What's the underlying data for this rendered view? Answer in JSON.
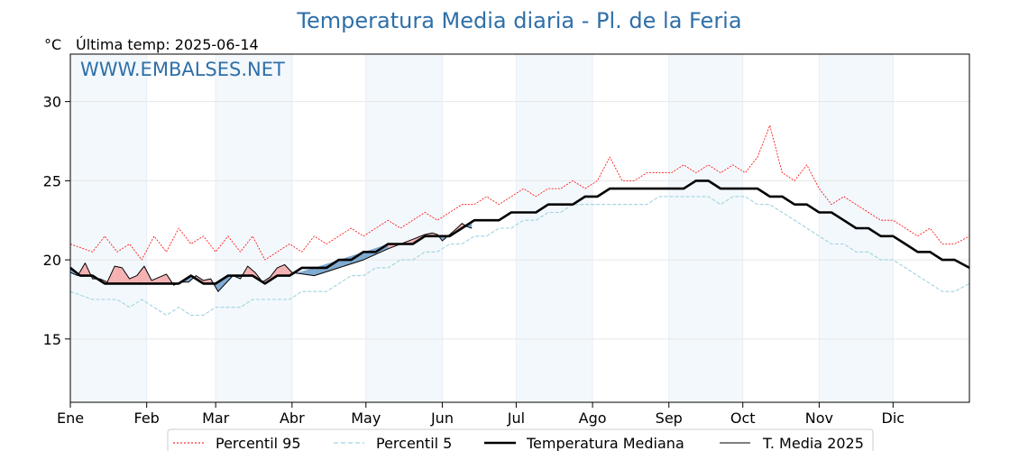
{
  "chart_data": {
    "type": "line",
    "title": "Temperatura Media diaria - Pl. de la Feria",
    "unit_label": "°C",
    "last_temp_label": "Última temp: 2025-06-14",
    "watermark": "WWW.EMBALSES.NET",
    "ylim": [
      11,
      33
    ],
    "yticks": [
      15,
      20,
      25,
      30
    ],
    "xlim": [
      1,
      366
    ],
    "month_ticks": [
      {
        "label": "Ene",
        "day": 1
      },
      {
        "label": "Feb",
        "day": 32
      },
      {
        "label": "Mar",
        "day": 60
      },
      {
        "label": "Abr",
        "day": 91
      },
      {
        "label": "May",
        "day": 121
      },
      {
        "label": "Jun",
        "day": 152
      },
      {
        "label": "Jul",
        "day": 182
      },
      {
        "label": "Ago",
        "day": 213
      },
      {
        "label": "Sep",
        "day": 244
      },
      {
        "label": "Oct",
        "day": 274
      },
      {
        "label": "Nov",
        "day": 305
      },
      {
        "label": "Dic",
        "day": 335
      }
    ],
    "grid": true,
    "legend_position": "bottom-center",
    "series": [
      {
        "name": "Percentil 95",
        "style": "dotted",
        "color": "#ff0000",
        "points": [
          [
            1,
            21.0
          ],
          [
            10,
            20.5
          ],
          [
            15,
            21.5
          ],
          [
            20,
            20.5
          ],
          [
            25,
            21.0
          ],
          [
            30,
            20.0
          ],
          [
            35,
            21.5
          ],
          [
            40,
            20.5
          ],
          [
            45,
            22.0
          ],
          [
            50,
            21.0
          ],
          [
            55,
            21.5
          ],
          [
            60,
            20.5
          ],
          [
            65,
            21.5
          ],
          [
            70,
            20.5
          ],
          [
            75,
            21.5
          ],
          [
            80,
            20.0
          ],
          [
            85,
            20.5
          ],
          [
            90,
            21.0
          ],
          [
            95,
            20.5
          ],
          [
            100,
            21.5
          ],
          [
            105,
            21.0
          ],
          [
            110,
            21.5
          ],
          [
            115,
            22.0
          ],
          [
            120,
            21.5
          ],
          [
            125,
            22.0
          ],
          [
            130,
            22.5
          ],
          [
            135,
            22.0
          ],
          [
            140,
            22.5
          ],
          [
            145,
            23.0
          ],
          [
            150,
            22.5
          ],
          [
            155,
            23.0
          ],
          [
            160,
            23.5
          ],
          [
            165,
            23.5
          ],
          [
            170,
            24.0
          ],
          [
            175,
            23.5
          ],
          [
            180,
            24.0
          ],
          [
            185,
            24.5
          ],
          [
            190,
            24.0
          ],
          [
            195,
            24.5
          ],
          [
            200,
            24.5
          ],
          [
            205,
            25.0
          ],
          [
            210,
            24.5
          ],
          [
            215,
            25.0
          ],
          [
            220,
            26.5
          ],
          [
            225,
            25.0
          ],
          [
            230,
            25.0
          ],
          [
            235,
            25.5
          ],
          [
            240,
            25.5
          ],
          [
            245,
            25.5
          ],
          [
            250,
            26.0
          ],
          [
            255,
            25.5
          ],
          [
            260,
            26.0
          ],
          [
            265,
            25.5
          ],
          [
            270,
            26.0
          ],
          [
            275,
            25.5
          ],
          [
            280,
            26.5
          ],
          [
            285,
            28.5
          ],
          [
            290,
            25.5
          ],
          [
            295,
            25.0
          ],
          [
            300,
            26.0
          ],
          [
            305,
            24.5
          ],
          [
            310,
            23.5
          ],
          [
            315,
            24.0
          ],
          [
            320,
            23.5
          ],
          [
            325,
            23.0
          ],
          [
            330,
            22.5
          ],
          [
            335,
            22.5
          ],
          [
            340,
            22.0
          ],
          [
            345,
            21.5
          ],
          [
            350,
            22.0
          ],
          [
            355,
            21.0
          ],
          [
            360,
            21.0
          ],
          [
            366,
            21.5
          ]
        ]
      },
      {
        "name": "Percentil 5",
        "style": "dashed",
        "color": "#9fd3e0",
        "points": [
          [
            1,
            18.0
          ],
          [
            10,
            17.5
          ],
          [
            15,
            17.5
          ],
          [
            20,
            17.5
          ],
          [
            25,
            17.0
          ],
          [
            30,
            17.5
          ],
          [
            35,
            17.0
          ],
          [
            40,
            16.5
          ],
          [
            45,
            17.0
          ],
          [
            50,
            16.5
          ],
          [
            55,
            16.5
          ],
          [
            60,
            17.0
          ],
          [
            65,
            17.0
          ],
          [
            70,
            17.0
          ],
          [
            75,
            17.5
          ],
          [
            80,
            17.5
          ],
          [
            85,
            17.5
          ],
          [
            90,
            17.5
          ],
          [
            95,
            18.0
          ],
          [
            100,
            18.0
          ],
          [
            105,
            18.0
          ],
          [
            110,
            18.5
          ],
          [
            115,
            19.0
          ],
          [
            120,
            19.0
          ],
          [
            125,
            19.5
          ],
          [
            130,
            19.5
          ],
          [
            135,
            20.0
          ],
          [
            140,
            20.0
          ],
          [
            145,
            20.5
          ],
          [
            150,
            20.5
          ],
          [
            155,
            21.0
          ],
          [
            160,
            21.0
          ],
          [
            165,
            21.5
          ],
          [
            170,
            21.5
          ],
          [
            175,
            22.0
          ],
          [
            180,
            22.0
          ],
          [
            185,
            22.5
          ],
          [
            190,
            22.5
          ],
          [
            195,
            23.0
          ],
          [
            200,
            23.0
          ],
          [
            205,
            23.5
          ],
          [
            210,
            23.5
          ],
          [
            215,
            23.5
          ],
          [
            220,
            23.5
          ],
          [
            225,
            23.5
          ],
          [
            230,
            23.5
          ],
          [
            235,
            23.5
          ],
          [
            240,
            24.0
          ],
          [
            245,
            24.0
          ],
          [
            250,
            24.0
          ],
          [
            255,
            24.0
          ],
          [
            260,
            24.0
          ],
          [
            265,
            23.5
          ],
          [
            270,
            24.0
          ],
          [
            275,
            24.0
          ],
          [
            280,
            23.5
          ],
          [
            285,
            23.5
          ],
          [
            290,
            23.0
          ],
          [
            295,
            22.5
          ],
          [
            300,
            22.0
          ],
          [
            305,
            21.5
          ],
          [
            310,
            21.0
          ],
          [
            315,
            21.0
          ],
          [
            320,
            20.5
          ],
          [
            325,
            20.5
          ],
          [
            330,
            20.0
          ],
          [
            335,
            20.0
          ],
          [
            340,
            19.5
          ],
          [
            345,
            19.0
          ],
          [
            350,
            18.5
          ],
          [
            355,
            18.0
          ],
          [
            360,
            18.0
          ],
          [
            366,
            18.5
          ]
        ]
      },
      {
        "name": "Temperatura Mediana",
        "style": "thick",
        "color": "#000000",
        "points": [
          [
            1,
            19.5
          ],
          [
            5,
            19.0
          ],
          [
            10,
            19.0
          ],
          [
            15,
            18.5
          ],
          [
            20,
            18.5
          ],
          [
            25,
            18.5
          ],
          [
            30,
            18.5
          ],
          [
            35,
            18.5
          ],
          [
            40,
            18.5
          ],
          [
            45,
            18.5
          ],
          [
            50,
            19.0
          ],
          [
            55,
            18.5
          ],
          [
            60,
            18.5
          ],
          [
            65,
            19.0
          ],
          [
            70,
            19.0
          ],
          [
            75,
            19.0
          ],
          [
            80,
            18.5
          ],
          [
            85,
            19.0
          ],
          [
            90,
            19.0
          ],
          [
            95,
            19.5
          ],
          [
            100,
            19.5
          ],
          [
            105,
            19.5
          ],
          [
            110,
            20.0
          ],
          [
            115,
            20.0
          ],
          [
            120,
            20.5
          ],
          [
            125,
            20.5
          ],
          [
            130,
            21.0
          ],
          [
            135,
            21.0
          ],
          [
            140,
            21.0
          ],
          [
            145,
            21.5
          ],
          [
            150,
            21.5
          ],
          [
            155,
            21.5
          ],
          [
            160,
            22.0
          ],
          [
            165,
            22.5
          ],
          [
            170,
            22.5
          ],
          [
            175,
            22.5
          ],
          [
            180,
            23.0
          ],
          [
            185,
            23.0
          ],
          [
            190,
            23.0
          ],
          [
            195,
            23.5
          ],
          [
            200,
            23.5
          ],
          [
            205,
            23.5
          ],
          [
            210,
            24.0
          ],
          [
            215,
            24.0
          ],
          [
            220,
            24.5
          ],
          [
            225,
            24.5
          ],
          [
            230,
            24.5
          ],
          [
            235,
            24.5
          ],
          [
            240,
            24.5
          ],
          [
            245,
            24.5
          ],
          [
            250,
            24.5
          ],
          [
            255,
            25.0
          ],
          [
            260,
            25.0
          ],
          [
            265,
            24.5
          ],
          [
            270,
            24.5
          ],
          [
            275,
            24.5
          ],
          [
            280,
            24.5
          ],
          [
            285,
            24.0
          ],
          [
            290,
            24.0
          ],
          [
            295,
            23.5
          ],
          [
            300,
            23.5
          ],
          [
            305,
            23.0
          ],
          [
            310,
            23.0
          ],
          [
            315,
            22.5
          ],
          [
            320,
            22.0
          ],
          [
            325,
            22.0
          ],
          [
            330,
            21.5
          ],
          [
            335,
            21.5
          ],
          [
            340,
            21.0
          ],
          [
            345,
            20.5
          ],
          [
            350,
            20.5
          ],
          [
            355,
            20.0
          ],
          [
            360,
            20.0
          ],
          [
            366,
            19.5
          ]
        ]
      },
      {
        "name": "T. Media 2025",
        "style": "thin",
        "color": "#000000",
        "points": [
          [
            1,
            19.2
          ],
          [
            4,
            19.0
          ],
          [
            7,
            19.8
          ],
          [
            10,
            18.8
          ],
          [
            13,
            18.8
          ],
          [
            16,
            18.6
          ],
          [
            19,
            19.6
          ],
          [
            22,
            19.5
          ],
          [
            25,
            18.8
          ],
          [
            28,
            19.0
          ],
          [
            31,
            19.6
          ],
          [
            34,
            18.7
          ],
          [
            37,
            18.9
          ],
          [
            40,
            19.1
          ],
          [
            43,
            18.4
          ],
          [
            46,
            18.6
          ],
          [
            49,
            18.6
          ],
          [
            52,
            19.0
          ],
          [
            55,
            18.7
          ],
          [
            58,
            18.8
          ],
          [
            61,
            18.0
          ],
          [
            64,
            18.5
          ],
          [
            67,
            19.0
          ],
          [
            70,
            18.8
          ],
          [
            73,
            19.6
          ],
          [
            76,
            19.2
          ],
          [
            79,
            18.6
          ],
          [
            82,
            18.9
          ],
          [
            85,
            19.5
          ],
          [
            88,
            19.7
          ],
          [
            91,
            19.2
          ],
          [
            100,
            19.0
          ],
          [
            110,
            19.5
          ],
          [
            120,
            20.0
          ],
          [
            130,
            20.7
          ],
          [
            140,
            21.3
          ],
          [
            145,
            21.6
          ],
          [
            148,
            21.7
          ],
          [
            150,
            21.6
          ],
          [
            152,
            21.2
          ],
          [
            155,
            21.6
          ],
          [
            158,
            22.0
          ],
          [
            160,
            22.3
          ],
          [
            162,
            22.1
          ],
          [
            164,
            22.0
          ]
        ]
      }
    ]
  },
  "legend": {
    "items": [
      "Percentil 95",
      "Percentil 5",
      "Temperatura Mediana",
      "T. Media 2025"
    ]
  }
}
